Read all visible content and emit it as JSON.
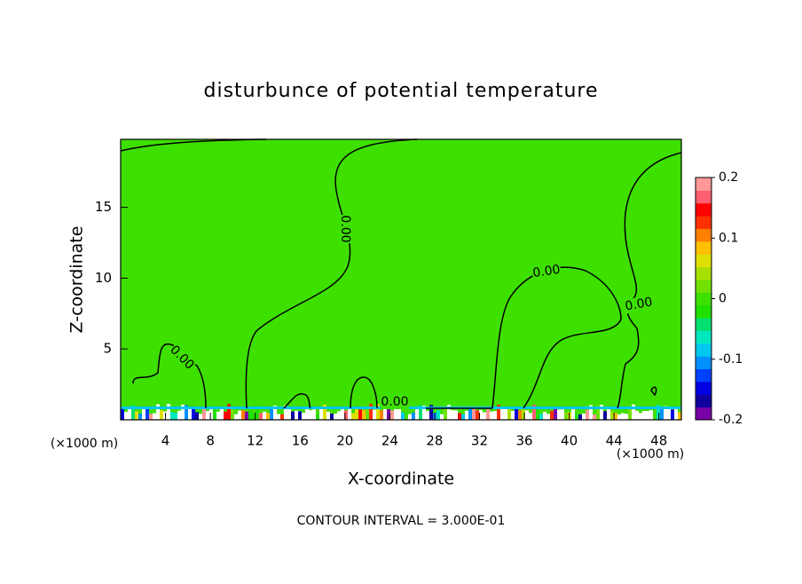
{
  "chart_data": {
    "type": "contour",
    "title": "disturbunce of potential temperature",
    "x_label": "X-coordinate",
    "y_label": "Z-coordinate",
    "x_unit_labels": [
      "(×1000 m)",
      "(×1000 m)"
    ],
    "xlim": [
      0,
      50
    ],
    "xticks": [
      4,
      8,
      12,
      16,
      20,
      24,
      28,
      32,
      36,
      40,
      44,
      48
    ],
    "ylim": [
      0,
      19.8
    ],
    "yticks": [
      5,
      10,
      15
    ],
    "field_color": "#3ee000",
    "contour_color": "#000000",
    "contour_labels": [
      "0.00",
      "0.00",
      "0.00",
      "0.00",
      "0.00"
    ],
    "footer": "CONTOUR INTERVAL = 3.000E-01",
    "colorbar": {
      "lim": [
        -0.2,
        0.2
      ],
      "ticks": [
        -0.2,
        -0.1,
        0,
        0.1,
        0.2
      ],
      "colors": [
        "#7a00a8",
        "#1000a0",
        "#0000e0",
        "#0040ff",
        "#0090ff",
        "#00c8f0",
        "#00e8c0",
        "#00e070",
        "#20e000",
        "#3ee000",
        "#70e000",
        "#a8e000",
        "#e0e000",
        "#ffc000",
        "#ff8000",
        "#ff3000",
        "#ff0000",
        "#ff6070",
        "#ff9898"
      ]
    }
  }
}
